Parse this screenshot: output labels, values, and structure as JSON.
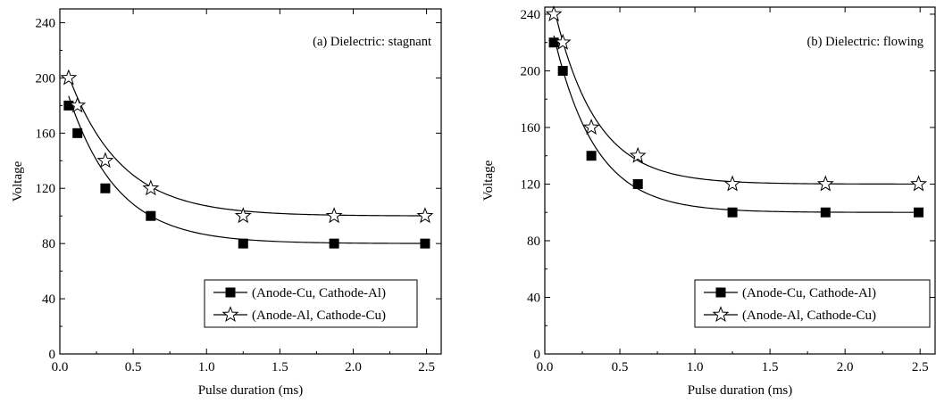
{
  "chart_data": [
    {
      "type": "scatter",
      "title": "(a) Dielectric: stagnant",
      "xlabel": "Pulse duration (ms)",
      "ylabel": "Voltage",
      "xlim": [
        0.0,
        2.6
      ],
      "ylim": [
        0,
        250
      ],
      "xticks": [
        0.0,
        0.5,
        1.0,
        1.5,
        2.0,
        2.5
      ],
      "xtick_labels": [
        "0.0",
        "0.5",
        "1.0",
        "1.5",
        "2.0",
        "2.5"
      ],
      "yticks": [
        0,
        40,
        80,
        120,
        160,
        200,
        240
      ],
      "ytick_labels": [
        "0",
        "40",
        "80",
        "120",
        "160",
        "200",
        "240"
      ],
      "grid": false,
      "legend_position": "bottom-right",
      "series": [
        {
          "name": "(Anode-Cu, Cathode-Al)",
          "marker": "square-filled",
          "x": [
            0.06,
            0.12,
            0.31,
            0.62,
            1.25,
            1.87,
            2.49
          ],
          "y": [
            180,
            160,
            120,
            100,
            80,
            80,
            80
          ],
          "fit": {
            "asymptote": 80,
            "amplitude": 128,
            "rate": 3.0
          }
        },
        {
          "name": "(Anode-Al, Cathode-Cu)",
          "marker": "star-open",
          "x": [
            0.06,
            0.12,
            0.31,
            0.62,
            1.25,
            1.87,
            2.49
          ],
          "y": [
            200,
            180,
            140,
            120,
            100,
            100,
            100
          ],
          "fit": {
            "asymptote": 100,
            "amplitude": 120,
            "rate": 2.8
          }
        }
      ]
    },
    {
      "type": "scatter",
      "title": "(b) Dielectric: flowing",
      "xlabel": "Pulse duration (ms)",
      "ylabel": "Voltage",
      "xlim": [
        0.0,
        2.6
      ],
      "ylim": [
        0,
        245
      ],
      "xticks": [
        0.0,
        0.5,
        1.0,
        1.5,
        2.0,
        2.5
      ],
      "xtick_labels": [
        "0.0",
        "0.5",
        "1.0",
        "1.5",
        "2.0",
        "2.5"
      ],
      "yticks": [
        0,
        40,
        80,
        120,
        160,
        200,
        240
      ],
      "ytick_labels": [
        "0",
        "40",
        "80",
        "120",
        "160",
        "200",
        "240"
      ],
      "grid": false,
      "legend_position": "bottom-right",
      "series": [
        {
          "name": "(Anode-Cu, Cathode-Al)",
          "marker": "square-filled",
          "x": [
            0.06,
            0.12,
            0.31,
            0.62,
            1.25,
            1.87,
            2.49
          ],
          "y": [
            220,
            200,
            140,
            120,
            100,
            100,
            100
          ],
          "fit": {
            "asymptote": 100,
            "amplitude": 155,
            "rate": 3.6
          }
        },
        {
          "name": "(Anode-Al, Cathode-Cu)",
          "marker": "star-open",
          "x": [
            0.06,
            0.12,
            0.31,
            0.62,
            1.25,
            1.87,
            2.49
          ],
          "y": [
            240,
            220,
            160,
            140,
            120,
            120,
            120
          ],
          "fit": {
            "asymptote": 120,
            "amplitude": 155,
            "rate": 3.6
          }
        }
      ]
    }
  ]
}
